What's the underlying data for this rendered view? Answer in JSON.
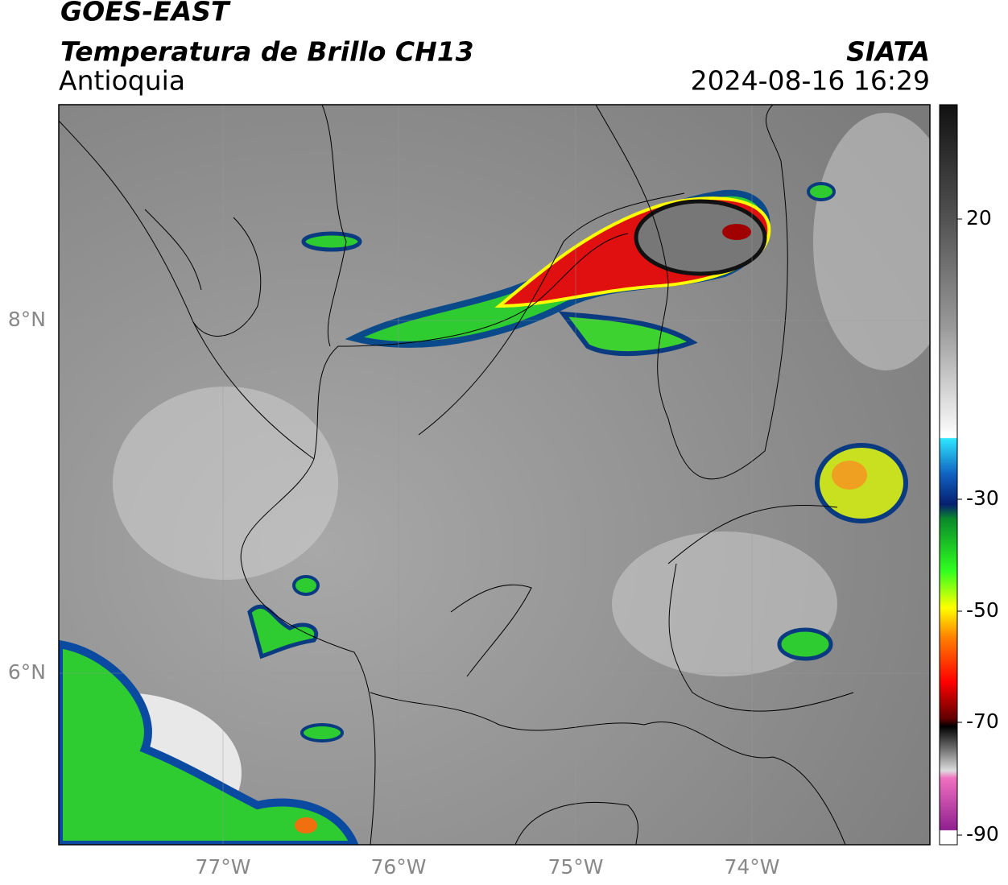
{
  "header": {
    "satellite": "GOES-EAST",
    "product": "Temperatura de Brillo CH13",
    "region": "Antioquia",
    "source": "SIATA",
    "datetime": "2024-08-16 16:29"
  },
  "map": {
    "lat_labels": [
      "8°N",
      "6°N"
    ],
    "lon_labels": [
      "77°W",
      "76°W",
      "75°W",
      "74°W"
    ]
  },
  "colorbar": {
    "labels": [
      "20",
      "-30",
      "-50",
      "-70",
      "-90"
    ]
  }
}
